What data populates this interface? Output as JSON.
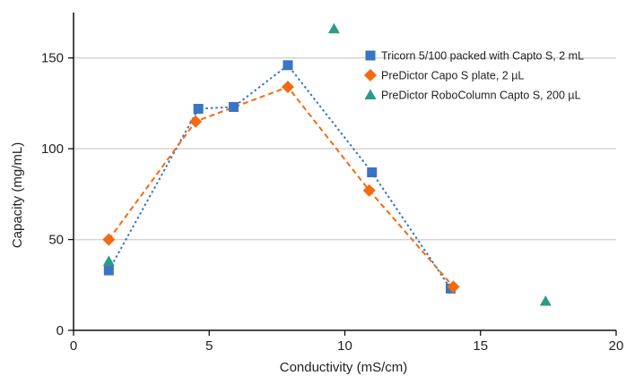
{
  "chart_data": {
    "type": "scatter",
    "title": "",
    "xlabel": "Conductivity (mS/cm)",
    "ylabel": "Capacity (mg/mL)",
    "xlim": [
      0,
      20
    ],
    "ylim": [
      0,
      175
    ],
    "xticks": [
      0,
      5,
      10,
      15,
      20
    ],
    "yticks": [
      0,
      50,
      100,
      150
    ],
    "grid": "horizontal",
    "legend_position": "right",
    "series": [
      {
        "name": "Tricorn 5/100 packed with Capto S, 2 mL",
        "marker": "square",
        "line": "dotted",
        "color": "#3a74c4",
        "points": [
          [
            1.3,
            33
          ],
          [
            4.6,
            122
          ],
          [
            5.9,
            123
          ],
          [
            7.9,
            146
          ],
          [
            11.0,
            87
          ],
          [
            13.9,
            23
          ]
        ]
      },
      {
        "name": "PreDictor Capo S plate, 2 µL",
        "marker": "diamond",
        "line": "dashed",
        "color": "#f46a11",
        "points": [
          [
            1.3,
            50
          ],
          [
            4.5,
            115
          ],
          [
            7.9,
            134
          ],
          [
            10.9,
            77
          ],
          [
            14.0,
            24
          ]
        ]
      },
      {
        "name": "PreDictor RoboColumn Capto S, 200 µL",
        "marker": "triangle",
        "line": "none",
        "color": "#2a9c86",
        "points": [
          [
            1.3,
            38
          ],
          [
            9.6,
            166
          ],
          [
            17.4,
            16
          ]
        ]
      }
    ]
  }
}
